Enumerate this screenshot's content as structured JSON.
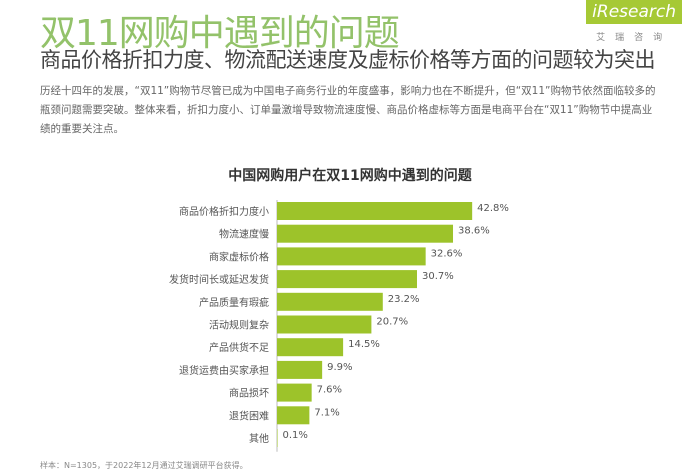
{
  "header": {
    "title": "双11网购中遇到的问题",
    "subtitle": "商品价格折扣力度、物流配送速度及虚标价格等方面的问题较为突出",
    "paragraph": "历经十四年的发展，“双11”购物节尽管已成为中国电子商务行业的年度盛事，影响力也在不断提升，但“双11”购物节依然面临较多的瓶颈问题需要突破。整体来看，折扣力度小、订单量激增导致物流速度慢、商品价格虚标等方面是电商平台在“双11”购物节中提高业绩的重要关注点。"
  },
  "logo": {
    "text": "iResearch",
    "cn": "艾瑞咨询"
  },
  "footer": "样本：N=1305，于2022年12月通过艾瑞调研平台获得。",
  "colors": {
    "bar": "#9dc32a",
    "title": "#93c26a"
  },
  "chart_data": {
    "type": "bar",
    "orientation": "horizontal",
    "title": "中国网购用户在双11网购中遇到的问题",
    "categories": [
      "商品价格折扣力度小",
      "物流速度慢",
      "商家虚标价格",
      "发货时间长或延迟发货",
      "产品质量有瑕疵",
      "活动规则复杂",
      "产品供货不足",
      "退货运费由买家承担",
      "商品损坏",
      "退货困难",
      "其他"
    ],
    "values": [
      42.8,
      38.6,
      32.6,
      30.7,
      23.2,
      20.7,
      14.5,
      9.9,
      7.6,
      7.1,
      0.1
    ],
    "labels": [
      "42.8%",
      "38.6%",
      "32.6%",
      "30.7%",
      "23.2%",
      "20.7%",
      "14.5%",
      "9.9%",
      "7.6%",
      "7.1%",
      "0.1%"
    ],
    "grid": false
  }
}
